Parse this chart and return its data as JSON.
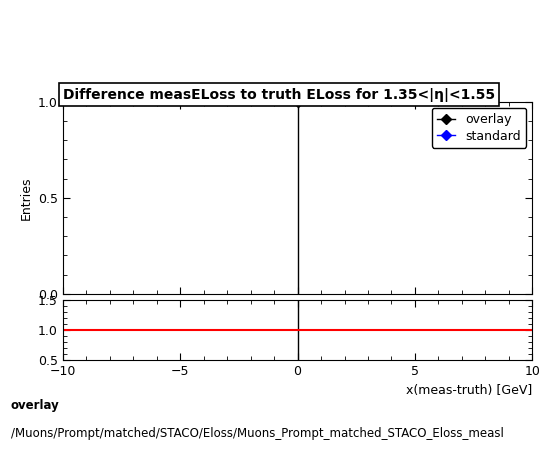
{
  "title": "Difference measELoss to truth ELoss for 1.35<|η|<1.55",
  "ylabel_main": "Entries",
  "xlabel": "x(meas-truth) [GeV]",
  "xlim": [
    -10,
    10
  ],
  "ylim_main": [
    0,
    1.0
  ],
  "ylim_ratio": [
    0.5,
    1.5
  ],
  "overlay_x": [
    0.0
  ],
  "overlay_y": [
    1.0
  ],
  "overlay_color": "#000000",
  "overlay_label": "overlay",
  "standard_color": "#0000ff",
  "standard_label": "standard",
  "ratio_line_color": "#ff0000",
  "ratio_line_y": 1.0,
  "vertical_line_x": 0.0,
  "vertical_line_color": "#000000",
  "ratio_yticks": [
    0.5,
    1.0,
    1.5
  ],
  "main_yticks": [
    0,
    0.5,
    1.0
  ],
  "xticks": [
    -10,
    -5,
    0,
    5,
    10
  ],
  "footer_text1": "overlay",
  "footer_text2": "/Muons/Prompt/matched/STACO/Eloss/Muons_Prompt_matched_STACO_Eloss_measl",
  "title_fontsize": 10,
  "label_fontsize": 9,
  "tick_fontsize": 9,
  "legend_fontsize": 9,
  "footer_fontsize": 8.5,
  "marker_size": 5
}
